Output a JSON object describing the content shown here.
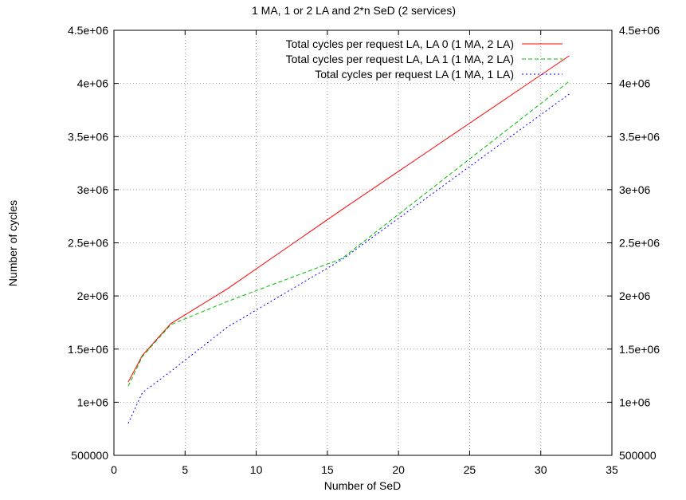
{
  "chart_data": {
    "type": "line",
    "title": "1 MA, 1 or 2 LA and 2*n SeD (2 services)",
    "xlabel": "Number of SeD",
    "ylabel": "Number of cycles",
    "xlim": [
      0,
      35
    ],
    "ylim": [
      500000,
      4500000
    ],
    "x_ticks": [
      0,
      5,
      10,
      15,
      20,
      25,
      30,
      35
    ],
    "y_ticks": [
      500000,
      1000000,
      1500000,
      2000000,
      2500000,
      3000000,
      3500000,
      4000000,
      4500000
    ],
    "x_tick_labels": [
      "0",
      "5",
      "10",
      "15",
      "20",
      "25",
      "30",
      "35"
    ],
    "y_tick_labels": [
      "500000",
      "1e+06",
      "1.5e+06",
      "2e+06",
      "2.5e+06",
      "3e+06",
      "3.5e+06",
      "4e+06",
      "4.5e+06"
    ],
    "grid": true,
    "legend_position": "top-right",
    "series": [
      {
        "name": "Total cycles per request LA, LA 0 (1 MA, 2 LA)",
        "color": "#ff0000",
        "dash": "solid",
        "x": [
          1,
          2,
          4,
          8,
          16,
          32
        ],
        "y": [
          1190000,
          1440000,
          1740000,
          2070000,
          2810000,
          4260000
        ]
      },
      {
        "name": "Total cycles per request LA, LA 1 (1 MA, 2 LA)",
        "color": "#00c000",
        "dash": "dashed",
        "x": [
          1,
          2,
          4,
          8,
          16,
          32
        ],
        "y": [
          1150000,
          1430000,
          1730000,
          1950000,
          2350000,
          4020000
        ]
      },
      {
        "name": "Total cycles per request LA (1 MA, 1 LA)",
        "color": "#0000ff",
        "dash": "dotted",
        "x": [
          1,
          2,
          4,
          8,
          16,
          32
        ],
        "y": [
          800000,
          1090000,
          1290000,
          1710000,
          2340000,
          3900000
        ]
      }
    ]
  }
}
